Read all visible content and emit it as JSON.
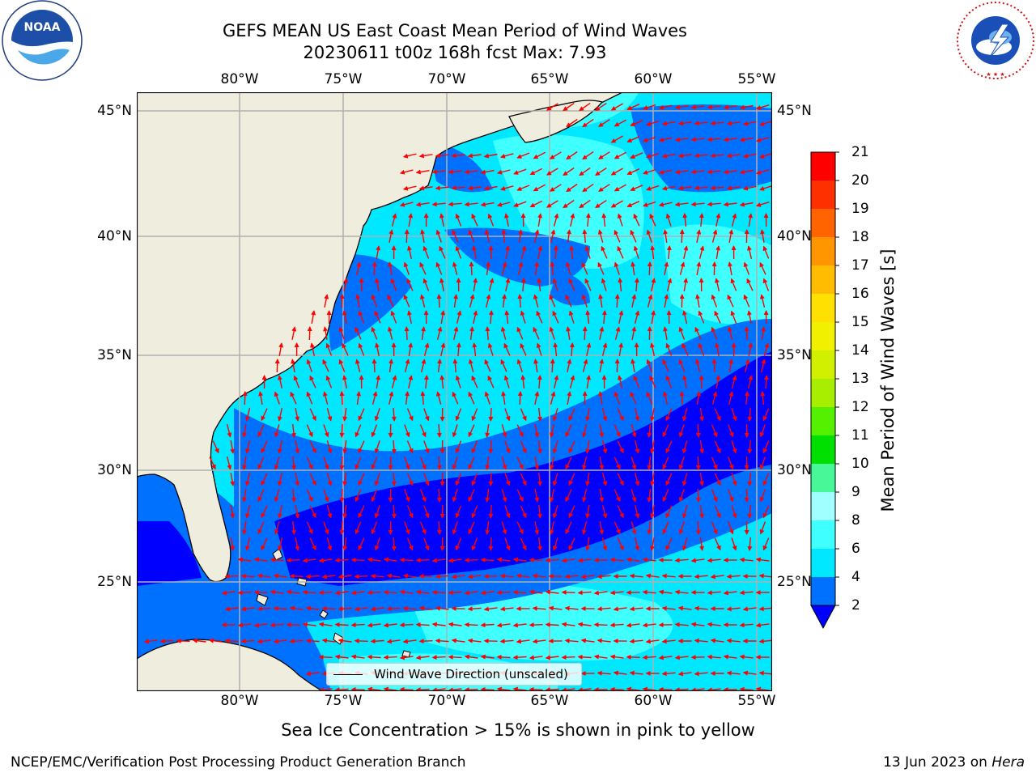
{
  "title": {
    "line1": "GEFS MEAN US East Coast Mean Period of Wind Waves",
    "line2": "20230611 t00z 168h fcst   Max: 7.93"
  },
  "logos": {
    "noaa_text": "NOAA",
    "noaa_ring": "NATIONAL OCEANIC AND ATMOSPHERIC ADMINISTRATION · U.S. DEPARTMENT OF COMMERCE",
    "nws_ring": "NATIONAL WEATHER SERVICE"
  },
  "map": {
    "lon_ticks": [
      "80°W",
      "75°W",
      "70°W",
      "65°W",
      "60°W",
      "55°W"
    ],
    "lat_ticks": [
      "45°N",
      "40°N",
      "35°N",
      "30°N",
      "25°N"
    ],
    "lon_values": [
      -80,
      -75,
      -70,
      -65,
      -60,
      -55
    ],
    "lat_values": [
      45,
      40,
      35,
      30,
      25
    ],
    "extent": {
      "lon_min": -85,
      "lon_max": -54.3,
      "lat_min": 20.3,
      "lat_max": 45.8
    },
    "land_color": "#efedde",
    "grid_color": "#b0b0b0",
    "arrow_color": "#ff0000",
    "legend_label": "Wind Wave Direction (unscaled)"
  },
  "colorbar": {
    "title": "Mean Period of Wind Waves [s]",
    "ticks": [
      "2",
      "4",
      "6",
      "8",
      "9",
      "10",
      "11",
      "12",
      "13",
      "14",
      "15",
      "16",
      "17",
      "18",
      "19",
      "20",
      "21"
    ],
    "colors": [
      "#0070ff",
      "#00e8ff",
      "#40ffff",
      "#a0ffff",
      "#48f898",
      "#00e000",
      "#54f000",
      "#a8ee00",
      "#d0f000",
      "#f0f000",
      "#ffe000",
      "#ffbc00",
      "#ff9600",
      "#ff6400",
      "#ff3000",
      "#ff0000"
    ],
    "under_color": "#0000ff"
  },
  "footer": {
    "sea_ice_note": "Sea Ice Concentration > 15% is shown in pink to yellow",
    "credit": "NCEP/EMC/Verification Post Processing Product Generation Branch",
    "date_prefix": "13 Jun 2023 on ",
    "machine": "Hera"
  }
}
